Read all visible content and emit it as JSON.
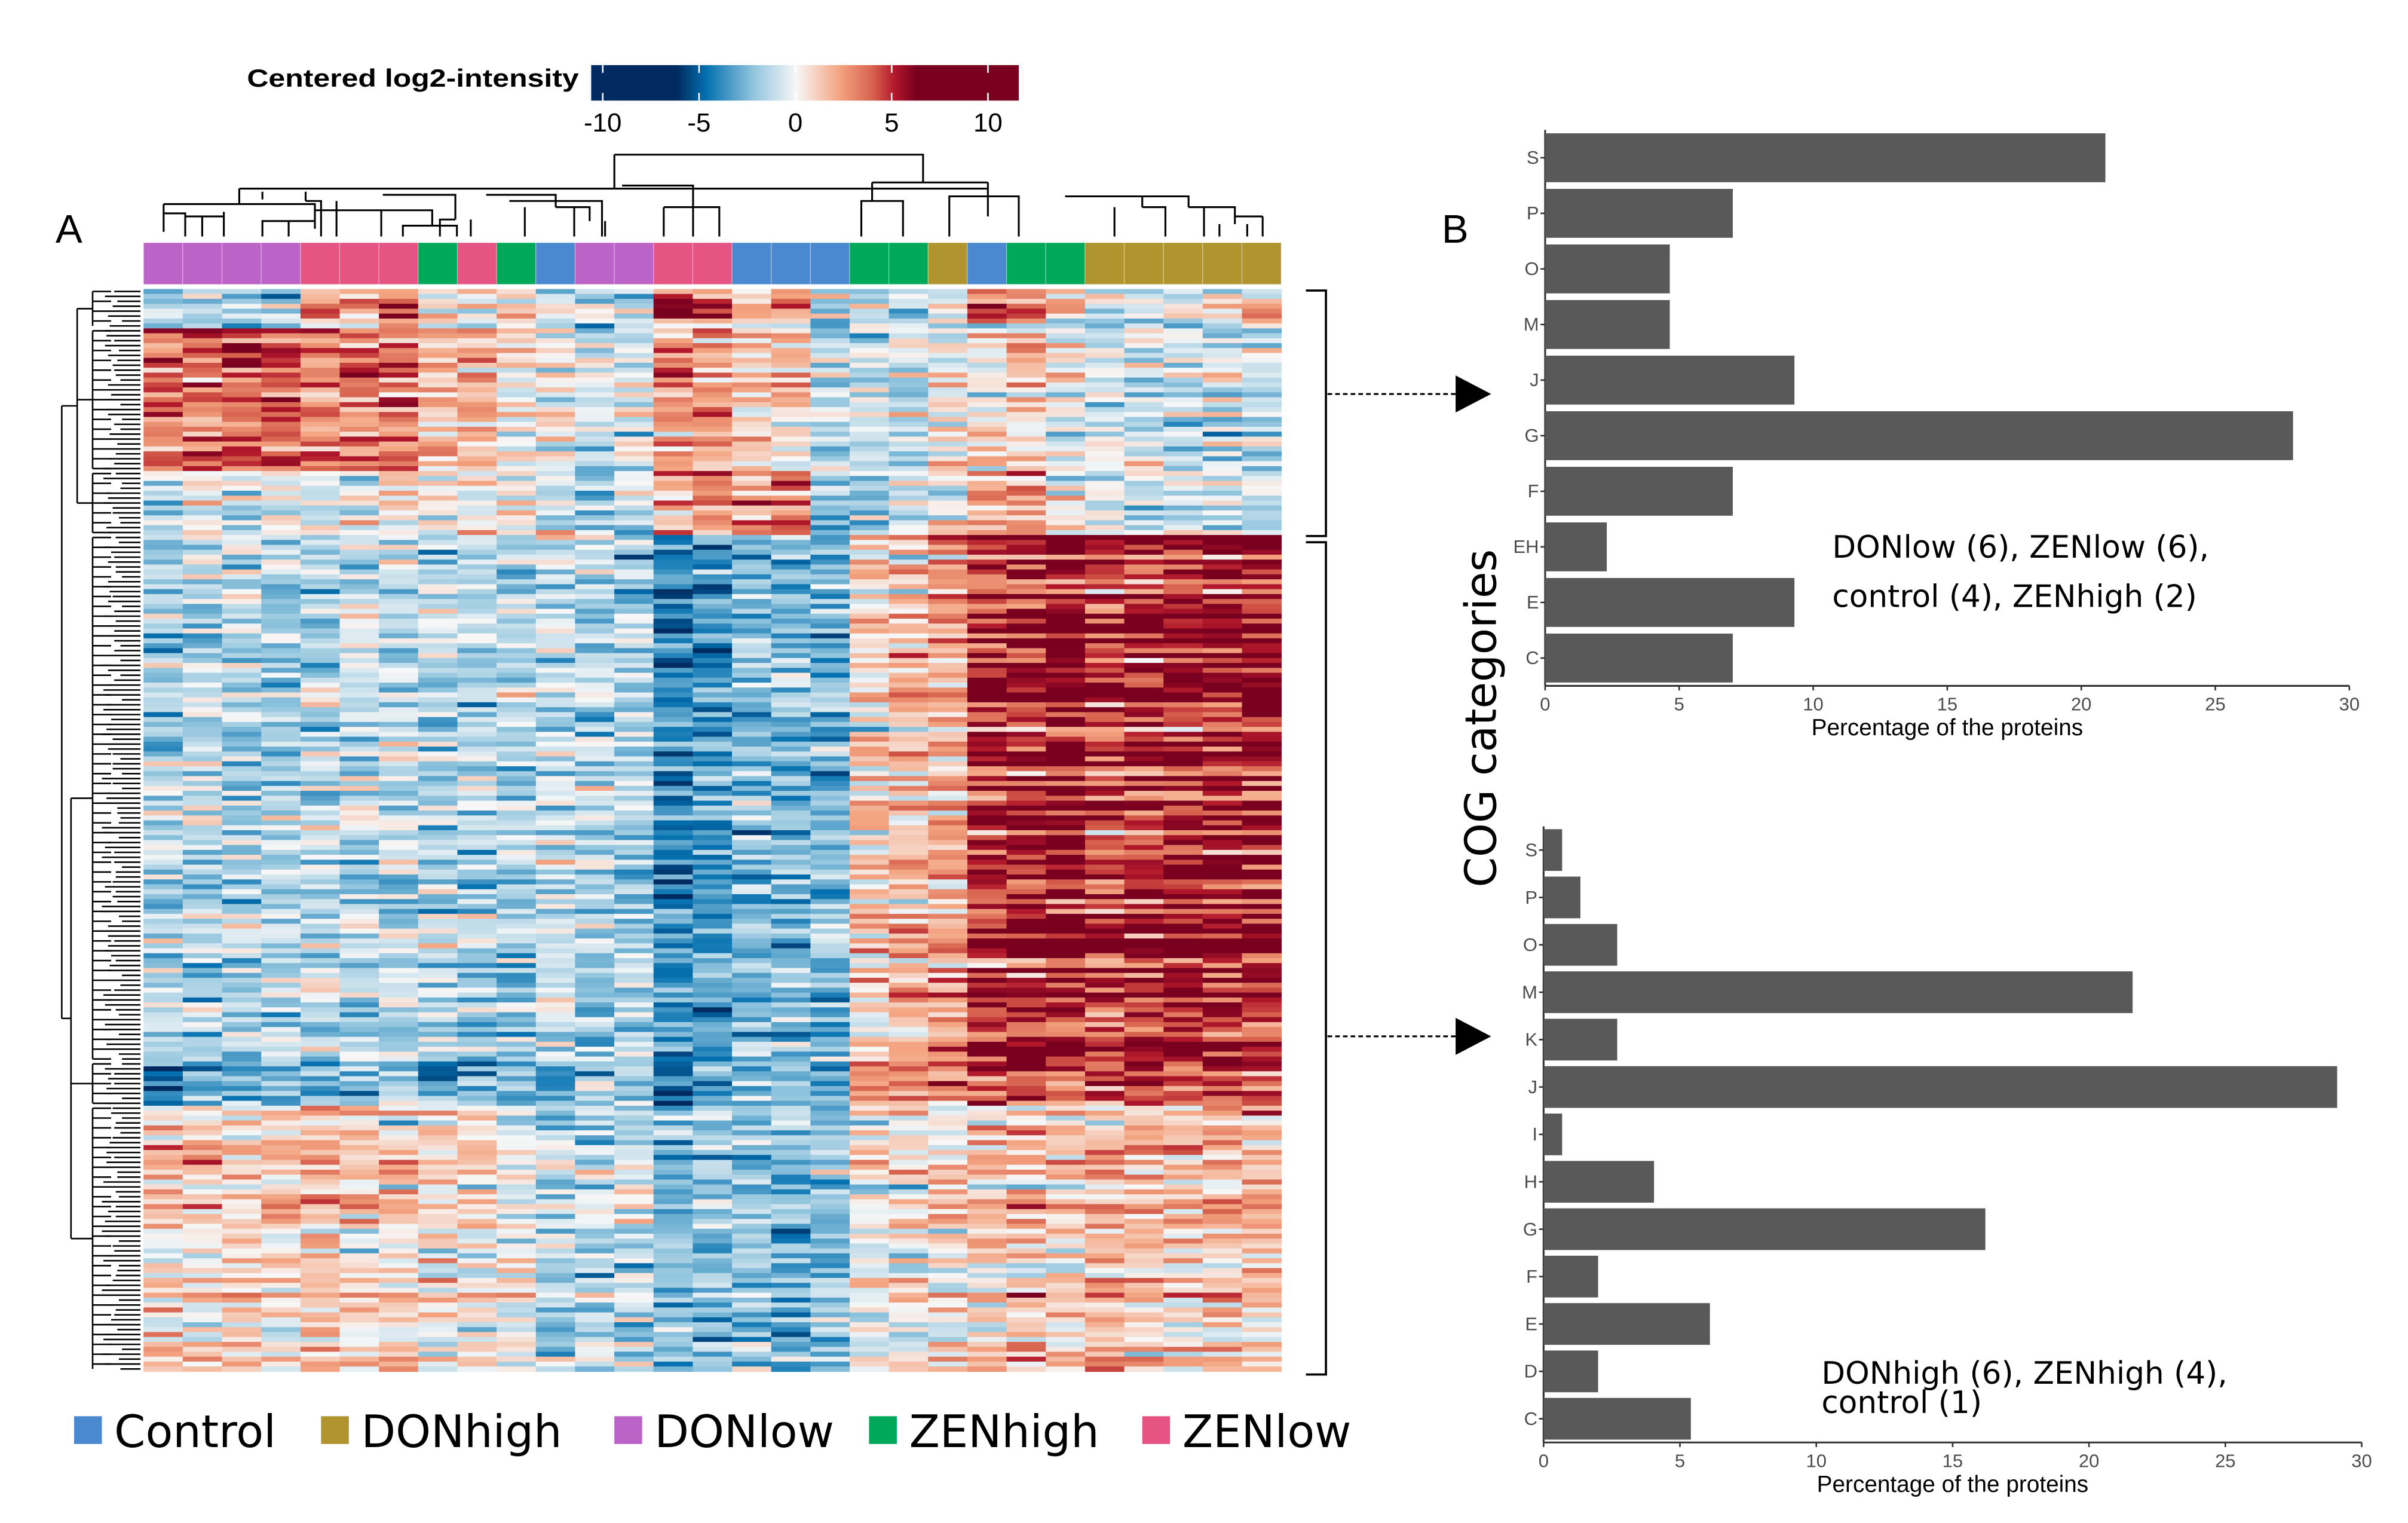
{
  "colors": {
    "Control": "#4a88d0",
    "DONhigh": "#b0952e",
    "DONlow": "#bb63c6",
    "ZENhigh": "#00a95a",
    "ZENlow": "#e55482",
    "bar": "#595959"
  },
  "panel_a": {
    "label": "A",
    "colorbar": {
      "title": "Centered log2-intensity",
      "ticks": [
        "-10",
        "-5",
        "0",
        "5",
        "10"
      ],
      "tick_values": [
        -10,
        -5,
        0,
        5,
        10
      ],
      "range": [
        -10.6,
        11.6
      ]
    },
    "legend": [
      "Control",
      "DONhigh",
      "DONlow",
      "ZENhigh",
      "ZENlow"
    ],
    "column_groups": [
      "DONlow",
      "DONlow",
      "DONlow",
      "DONlow",
      "ZENlow",
      "ZENlow",
      "ZENlow",
      "ZENhigh",
      "ZENlow",
      "ZENhigh",
      "Control",
      "DONlow",
      "DONlow",
      "ZENlow",
      "ZENlow",
      "Control",
      "Control",
      "Control",
      "ZENhigh",
      "ZENhigh",
      "DONhigh",
      "Control",
      "ZENhigh",
      "ZENhigh",
      "DONhigh",
      "DONhigh",
      "DONhigh",
      "DONhigh",
      "DONhigh"
    ],
    "row_blocks": [
      {
        "rows": 8,
        "col_means": [
          -3,
          -2,
          -2,
          -2,
          2,
          1,
          3,
          -1,
          0,
          1,
          -1,
          -1,
          -2,
          4,
          4,
          1,
          2,
          -1,
          -1,
          -1,
          -1,
          3,
          3,
          1,
          -1,
          -2,
          -1,
          0,
          0
        ]
      },
      {
        "rows": 29,
        "col_means": [
          3,
          3,
          3.5,
          3.5,
          3,
          2.5,
          3,
          1,
          1,
          0,
          0,
          -1,
          0,
          2,
          2,
          1,
          1,
          -1,
          -1,
          -1,
          0,
          0,
          1,
          0,
          -1,
          -1,
          -1,
          -1,
          -1
        ]
      },
      {
        "rows": 13,
        "col_means": [
          -1.5,
          -1,
          -1,
          -0.5,
          -1,
          -0.5,
          0,
          0,
          0,
          0,
          -1,
          -1,
          -1,
          2,
          2,
          2,
          3,
          -2,
          -2,
          -1,
          0,
          2,
          2,
          0,
          -1,
          -1,
          -1,
          -1,
          -1
        ]
      },
      {
        "rows": 107,
        "col_means": [
          -1.5,
          -1.5,
          -1.5,
          -1.5,
          -1.2,
          -1.2,
          -1,
          -1.5,
          -1.5,
          -1.5,
          -1,
          -1.5,
          -1.5,
          -4,
          -3.5,
          -2.5,
          -2.5,
          -2.5,
          1,
          1.5,
          2,
          5,
          5.5,
          6,
          4.5,
          5,
          5.5,
          5.5,
          5.5
        ]
      },
      {
        "rows": 9,
        "col_means": [
          -4,
          -3.5,
          -3,
          -3,
          -3,
          -2,
          -2,
          -3,
          -3,
          -2,
          -3,
          -2,
          -2,
          -5,
          -4,
          -3,
          -3,
          -4,
          4,
          3.5,
          3,
          4,
          4.5,
          4,
          4,
          5,
          4,
          4.5,
          4
        ]
      },
      {
        "rows": 54,
        "col_means": [
          1,
          1,
          1,
          1,
          1.2,
          1,
          1,
          0.5,
          0.5,
          -0.5,
          -1.5,
          -1,
          -1,
          -2.5,
          -2,
          -2,
          -2.5,
          -2,
          0,
          0,
          0.5,
          1,
          1.5,
          1,
          2,
          1.5,
          1,
          1.5,
          1.5
        ]
      }
    ],
    "noise": 2.3,
    "seed": 7
  },
  "panel_b": {
    "label": "B",
    "y_axis_title": "COG categories"
  },
  "chart_data": [
    {
      "type": "bar",
      "orientation": "horizontal",
      "categories": [
        "S",
        "P",
        "O",
        "M",
        "J",
        "G",
        "F",
        "EH",
        "E",
        "C"
      ],
      "values": [
        20.9,
        7.0,
        4.65,
        4.65,
        9.3,
        27.9,
        7.0,
        2.3,
        9.3,
        7.0
      ],
      "xlabel": "Percentage of the proteins",
      "ylabel": "COG categories",
      "xlim": [
        0,
        30
      ],
      "xticks": [
        "0",
        "5",
        "10",
        "15",
        "20",
        "25",
        "30"
      ],
      "annotation": [
        "DONlow (6), ZENlow (6),",
        "control (4), ZENhigh (2)"
      ],
      "grid": false
    },
    {
      "type": "bar",
      "orientation": "horizontal",
      "categories": [
        "S",
        "P",
        "O",
        "M",
        "K",
        "J",
        "I",
        "H",
        "G",
        "F",
        "E",
        "D",
        "C"
      ],
      "values": [
        0.68,
        1.35,
        2.7,
        21.6,
        2.7,
        29.1,
        0.68,
        4.05,
        16.2,
        2.0,
        6.1,
        2.0,
        5.4
      ],
      "xlabel": "Percentage of the proteins",
      "ylabel": "COG categories",
      "xlim": [
        0,
        30
      ],
      "xticks": [
        "0",
        "5",
        "10",
        "15",
        "20",
        "25",
        "30"
      ],
      "annotation": [
        "DONhigh (6), ZENhigh (4),",
        "control (1)"
      ],
      "grid": false
    }
  ]
}
